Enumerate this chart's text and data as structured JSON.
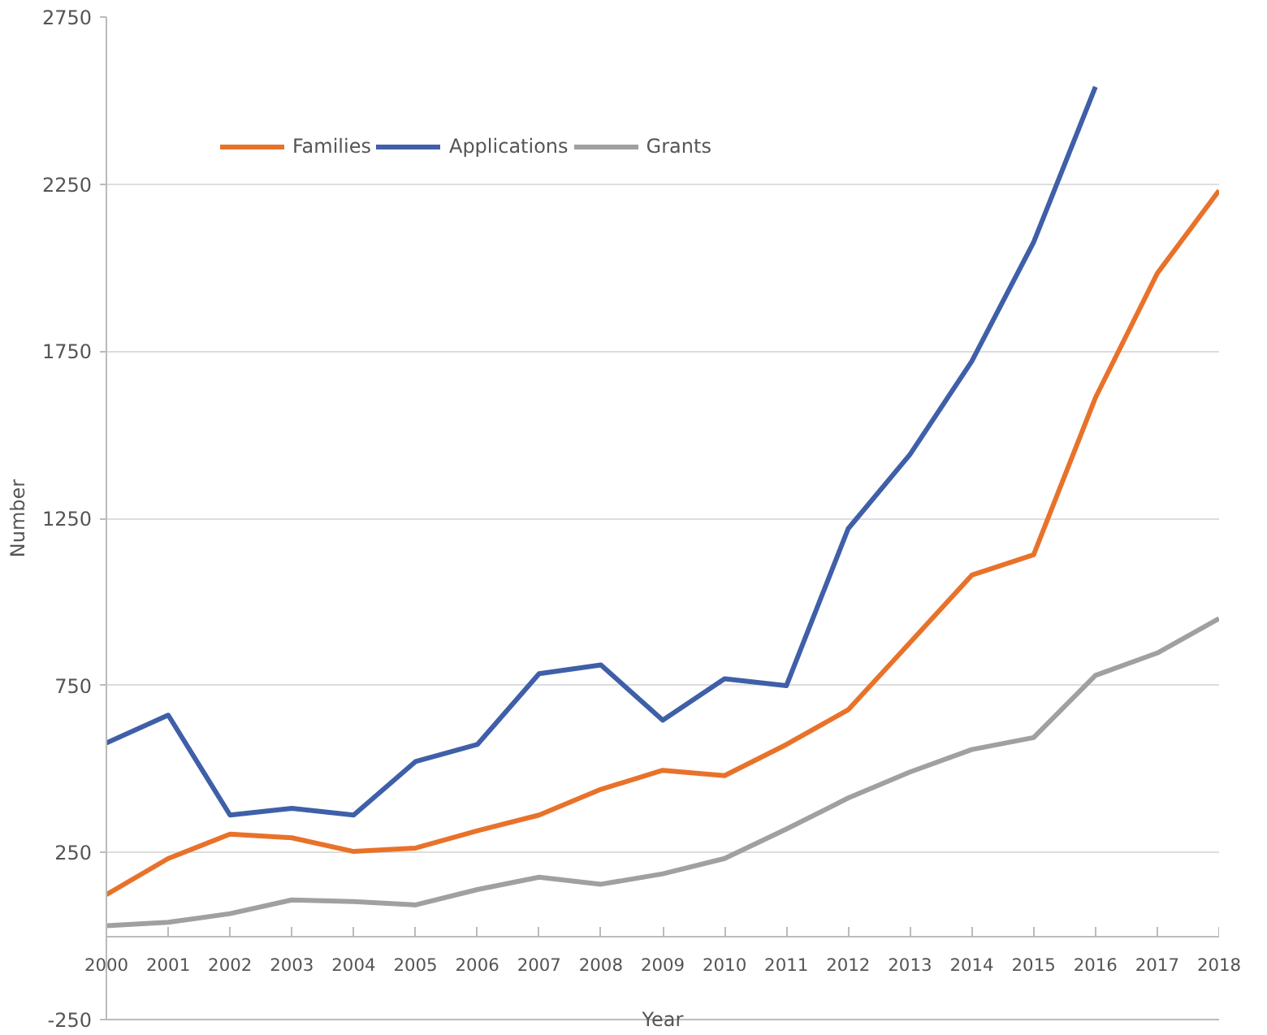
{
  "chart_data": {
    "type": "line",
    "xlabel": "Year",
    "ylabel": "Number",
    "x": [
      2000,
      2001,
      2002,
      2003,
      2004,
      2005,
      2006,
      2007,
      2008,
      2009,
      2010,
      2011,
      2012,
      2013,
      2014,
      2015,
      2016,
      2017,
      2018
    ],
    "series": [
      {
        "name": "Families",
        "color": "#e8722a",
        "values": [
          124,
          232,
          305,
          294,
          253,
          263,
          315,
          362,
          439,
          496,
          480,
          573,
          677,
          878,
          1080,
          1141,
          1611,
          1983,
          2231
        ]
      },
      {
        "name": "Applications",
        "color": "#3f5fa8",
        "values": [
          578,
          661,
          362,
          382,
          362,
          522,
          573,
          785,
          811,
          646,
          770,
          749,
          1219,
          1441,
          1720,
          2076,
          2541,
          null,
          null
        ]
      },
      {
        "name": "Grants",
        "color": "#a0a0a0",
        "values": [
          31,
          41,
          67,
          108,
          103,
          93,
          139,
          176,
          155,
          186,
          232,
          320,
          413,
          491,
          558,
          594,
          780,
          847,
          950
        ]
      }
    ],
    "xlim": [
      2000,
      2018
    ],
    "xticks": [
      2000,
      2001,
      2002,
      2003,
      2004,
      2005,
      2006,
      2007,
      2008,
      2009,
      2010,
      2011,
      2012,
      2013,
      2014,
      2015,
      2016,
      2017,
      2018
    ],
    "ylim": [
      -250,
      2750
    ],
    "yticks": [
      -250,
      250,
      750,
      1250,
      1750,
      2250,
      2750
    ],
    "grid": "y",
    "legend": "top left",
    "marker": "none",
    "line_style": "solid"
  }
}
